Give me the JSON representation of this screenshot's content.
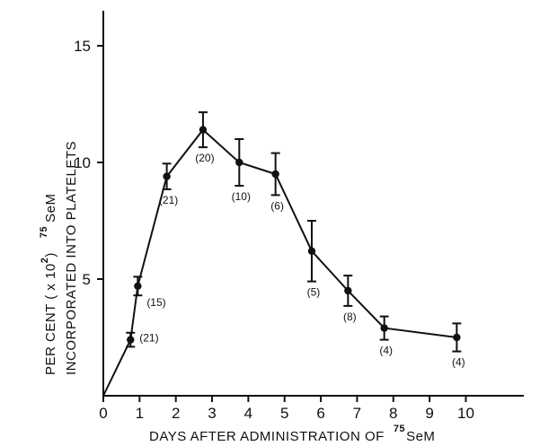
{
  "chart_data": {
    "type": "line",
    "title": "",
    "xlabel": {
      "main": "DAYS AFTER ADMINISTRATION OF",
      "sup": "75",
      "suffix": "SeM"
    },
    "ylabel": {
      "line1_main": "PER CENT ( x 10",
      "line1_sup2": "2",
      "line1_close": ")",
      "line1_sup75": "75",
      "line1_suffix": "SeM",
      "line2": "INCORPORATED INTO PLATELETS"
    },
    "xlim": [
      0,
      11.6
    ],
    "ylim": [
      0,
      16.5
    ],
    "xticks": [
      0,
      1,
      2,
      3,
      4,
      5,
      6,
      7,
      8,
      9,
      10
    ],
    "xtick_labels": [
      "0",
      "1",
      "2",
      "3",
      "4",
      "5",
      "6",
      "7",
      "8",
      "9",
      "10"
    ],
    "yticks": [
      5,
      10,
      15
    ],
    "ytick_labels": [
      "5",
      "10",
      "15"
    ],
    "grid": false,
    "series": [
      {
        "points": [
          {
            "x": 0,
            "y": 0,
            "err": 0,
            "n": ""
          },
          {
            "x": 0.75,
            "y": 2.4,
            "err": 0.3,
            "n": "(21)"
          },
          {
            "x": 0.95,
            "y": 4.7,
            "err": 0.4,
            "n": "(15)"
          },
          {
            "x": 1.75,
            "y": 9.4,
            "err": 0.55,
            "n": "(21)"
          },
          {
            "x": 2.75,
            "y": 11.4,
            "err": 0.75,
            "n": "(20)"
          },
          {
            "x": 3.75,
            "y": 10.0,
            "err": 1.0,
            "n": "(10)"
          },
          {
            "x": 4.75,
            "y": 9.5,
            "err": 0.9,
            "n": "(6)"
          },
          {
            "x": 5.75,
            "y": 6.2,
            "err": 1.3,
            "n": "(5)"
          },
          {
            "x": 6.75,
            "y": 4.5,
            "err": 0.65,
            "n": "(8)"
          },
          {
            "x": 7.75,
            "y": 2.9,
            "err": 0.5,
            "n": "(4)"
          },
          {
            "x": 9.75,
            "y": 2.5,
            "err": 0.6,
            "n": "(4)"
          }
        ]
      }
    ]
  }
}
